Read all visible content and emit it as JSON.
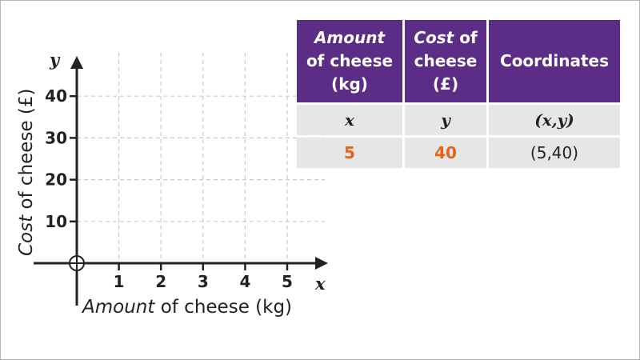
{
  "graph": {
    "x_var": "x",
    "y_var": "y",
    "x_ticks": [
      "1",
      "2",
      "3",
      "4",
      "5"
    ],
    "y_ticks": [
      "10",
      "20",
      "30",
      "40"
    ],
    "x_title_italic": "Amount",
    "x_title_rest": " of cheese (kg)",
    "y_title_italic": "Cost",
    "y_title_rest": " of cheese (£)",
    "x_range": [
      0,
      5.5
    ],
    "y_range": [
      0,
      45
    ],
    "grid": true,
    "gridline_color": "#c9c9dc",
    "axis_color": "#222222",
    "points_plotted": []
  },
  "table": {
    "header_color": "#5b2d86",
    "row_color": "#e6e6e6",
    "value_color": "#e0651a",
    "headers": [
      {
        "italic": "Amount",
        "rest_line1": "of cheese",
        "rest_line2": "(kg)"
      },
      {
        "italic": "Cost",
        "rest_line0": " of",
        "rest_line1": "cheese",
        "rest_line2": "(£)"
      },
      {
        "label": "Coordinates"
      }
    ],
    "var_row": [
      "x",
      "y",
      "(x,y)"
    ],
    "value_row": [
      "5",
      "40",
      "(5,40)"
    ]
  }
}
